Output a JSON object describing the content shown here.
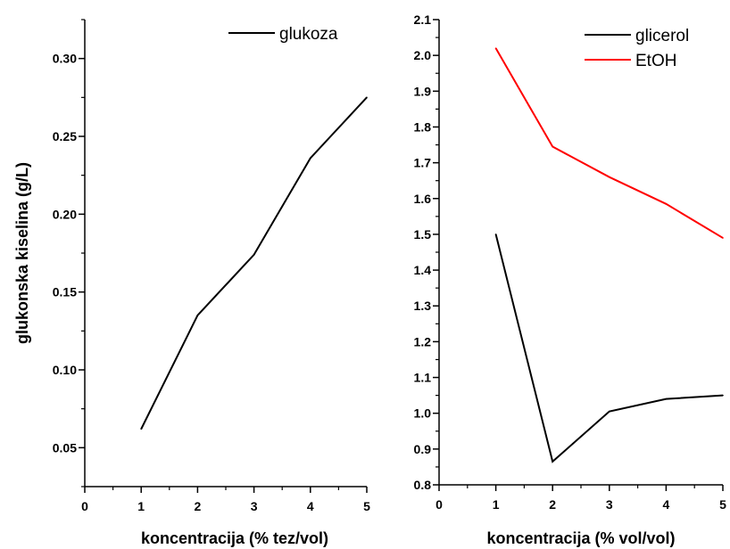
{
  "chart_data": [
    {
      "type": "line",
      "xlabel": "koncentracija (% tez/vol)",
      "ylabel": "glukonska kiselina (g/L)",
      "xlim": [
        0,
        5
      ],
      "ylim": [
        0.025,
        0.325
      ],
      "x_ticks": [
        "0",
        "1",
        "2",
        "3",
        "4",
        "5"
      ],
      "y_ticks": [
        "0.05",
        "0.10",
        "0.15",
        "0.20",
        "0.25",
        "0.30"
      ],
      "legend_position": "top-right",
      "grid": false,
      "series": [
        {
          "name": "glukoza",
          "color": "#000000",
          "x": [
            1,
            2,
            3,
            4,
            5
          ],
          "values": [
            0.062,
            0.135,
            0.174,
            0.236,
            0.275
          ]
        }
      ]
    },
    {
      "type": "line",
      "xlabel": "koncentracija (% vol/vol)",
      "ylabel": "",
      "xlim": [
        0,
        5
      ],
      "ylim": [
        0.8,
        2.1
      ],
      "x_ticks": [
        "0",
        "1",
        "2",
        "3",
        "4",
        "5"
      ],
      "y_ticks": [
        "0.8",
        "0.9",
        "1.0",
        "1.1",
        "1.2",
        "1.3",
        "1.4",
        "1.5",
        "1.6",
        "1.7",
        "1.8",
        "1.9",
        "2.0",
        "2.1"
      ],
      "legend_position": "top-right",
      "grid": false,
      "series": [
        {
          "name": "glicerol",
          "color": "#000000",
          "x": [
            1,
            2,
            3,
            4,
            5
          ],
          "values": [
            1.5,
            0.865,
            1.005,
            1.04,
            1.05
          ]
        },
        {
          "name": "EtOH",
          "color": "#ff0000",
          "x": [
            1,
            2,
            3,
            4,
            5
          ],
          "values": [
            2.02,
            1.745,
            1.66,
            1.585,
            1.49
          ]
        }
      ]
    }
  ]
}
